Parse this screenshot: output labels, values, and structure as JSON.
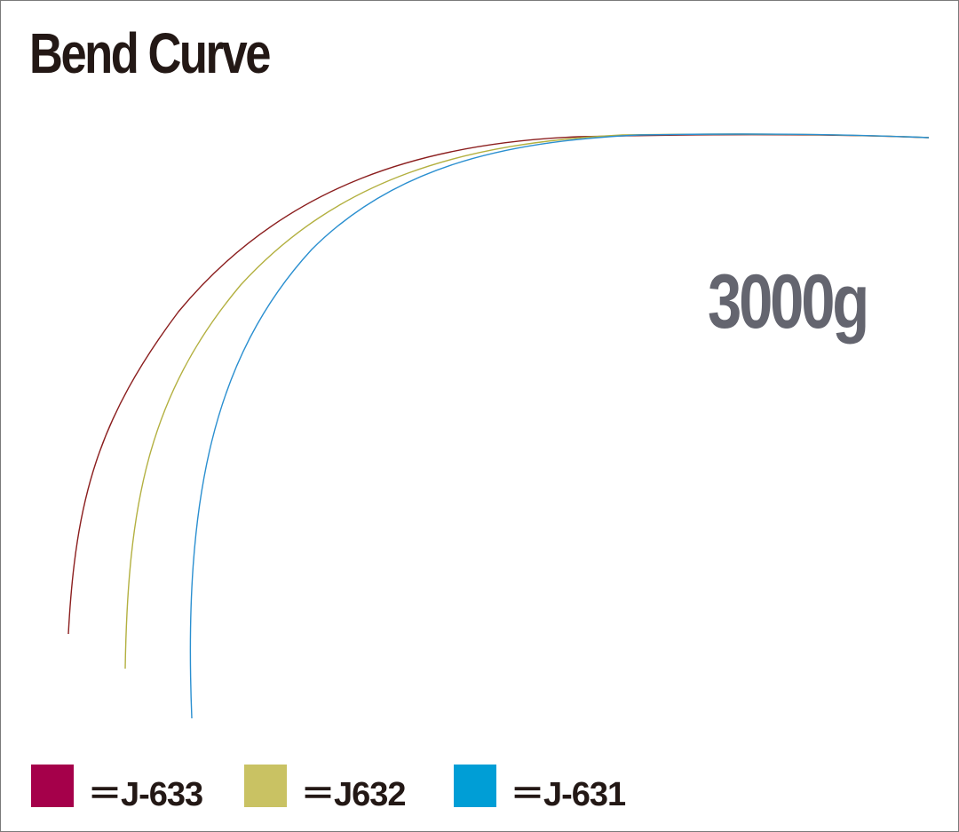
{
  "title": "Bend Curve",
  "load": "3000g",
  "legend": [
    {
      "label": "＝J-633",
      "color": "#a5004a",
      "line_color": "#8b1e1e"
    },
    {
      "label": "＝J632",
      "color": "#c9c263",
      "line_color": "#b3b040"
    },
    {
      "label": "＝J-631",
      "color": "#009ed6",
      "line_color": "#2a8fd0"
    }
  ]
}
